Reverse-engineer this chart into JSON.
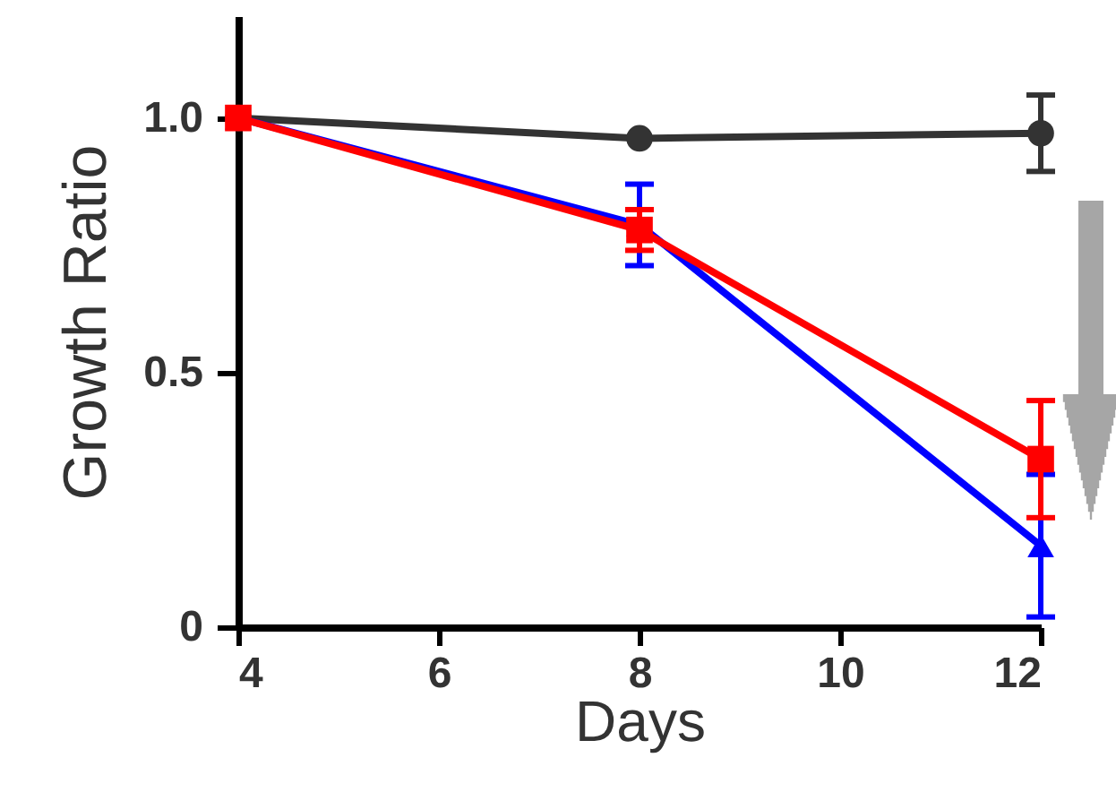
{
  "chart_data": {
    "type": "line",
    "xlabel": "Days",
    "ylabel": "Growth Ratio",
    "x": [
      4,
      8,
      12
    ],
    "xlim": [
      4,
      12
    ],
    "xticks": [
      4,
      6,
      8,
      10,
      12
    ],
    "ylim": [
      0,
      1.2
    ],
    "yticks": [
      0,
      0.5,
      {
        "value": 1.0,
        "label": "1.0"
      }
    ],
    "grid": false,
    "series": [
      {
        "color": "#333333",
        "marker": "circle",
        "values": [
          1.0,
          0.96,
          0.97
        ],
        "errors": [
          null,
          null,
          0.075
        ]
      },
      {
        "color": "#0000ff",
        "marker": "triangle",
        "values": [
          1.0,
          0.79,
          0.16
        ],
        "errors": [
          null,
          0.08,
          0.14
        ]
      },
      {
        "color": "#ff0000",
        "marker": "square",
        "values": [
          1.0,
          0.78,
          0.33
        ],
        "errors": [
          null,
          0.04,
          0.115
        ]
      }
    ]
  }
}
